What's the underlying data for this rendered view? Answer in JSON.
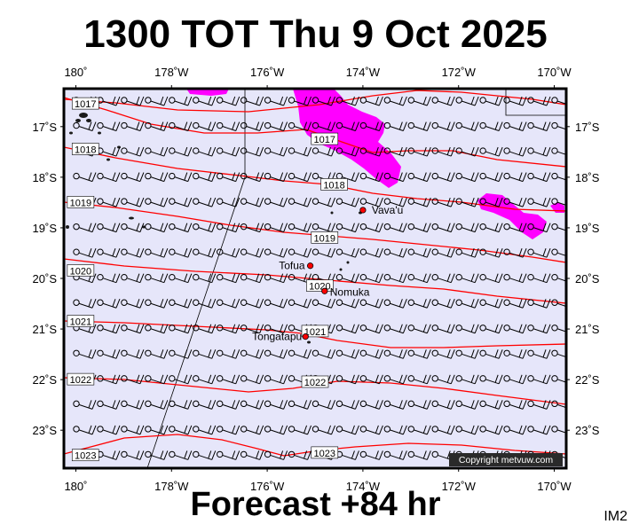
{
  "title": "1300 TOT Thu 9 Oct 2025",
  "footer": "Forecast +84 hr",
  "model": "IM2",
  "copyright": "Copyright metvuw.com",
  "colors": {
    "ocean": "#e6e6fa",
    "isobar": "#ff0000",
    "rain": "#ff00ff",
    "place": "#ff0000"
  },
  "lon_ticks": [
    "180˚",
    "178˚W",
    "176˚W",
    "174˚W",
    "172˚W",
    "170˚W"
  ],
  "lat_ticks": [
    "17˚S",
    "18˚S",
    "19˚S",
    "20˚S",
    "21˚S",
    "22˚S",
    "23˚S"
  ],
  "places": [
    {
      "name": "Vava'u",
      "lon": -174.0,
      "lat": -18.65
    },
    {
      "name": "Tofua",
      "lon": -175.1,
      "lat": -19.75
    },
    {
      "name": "Nomuka",
      "lon": -174.8,
      "lat": -20.25
    },
    {
      "name": "Tongatapu",
      "lon": -175.2,
      "lat": -21.15
    }
  ],
  "isobar_labels": [
    {
      "text": "1017",
      "lon": -179.8,
      "lat": -16.55
    },
    {
      "text": "1017",
      "lon": -174.8,
      "lat": -17.25
    },
    {
      "text": "1018",
      "lon": -179.8,
      "lat": -17.45
    },
    {
      "text": "1018",
      "lon": -174.6,
      "lat": -18.15
    },
    {
      "text": "1019",
      "lon": -179.9,
      "lat": -18.5
    },
    {
      "text": "1019",
      "lon": -174.8,
      "lat": -19.2
    },
    {
      "text": "1020",
      "lon": -179.9,
      "lat": -19.85
    },
    {
      "text": "1020",
      "lon": -174.9,
      "lat": -20.15
    },
    {
      "text": "1021",
      "lon": -179.9,
      "lat": -20.85
    },
    {
      "text": "1021",
      "lon": -175.0,
      "lat": -21.05
    },
    {
      "text": "1022",
      "lon": -179.9,
      "lat": -22.0
    },
    {
      "text": "1022",
      "lon": -175.0,
      "lat": -22.05
    },
    {
      "text": "1023",
      "lon": -179.8,
      "lat": -23.5
    },
    {
      "text": "1023",
      "lon": -174.8,
      "lat": -23.45
    }
  ]
}
